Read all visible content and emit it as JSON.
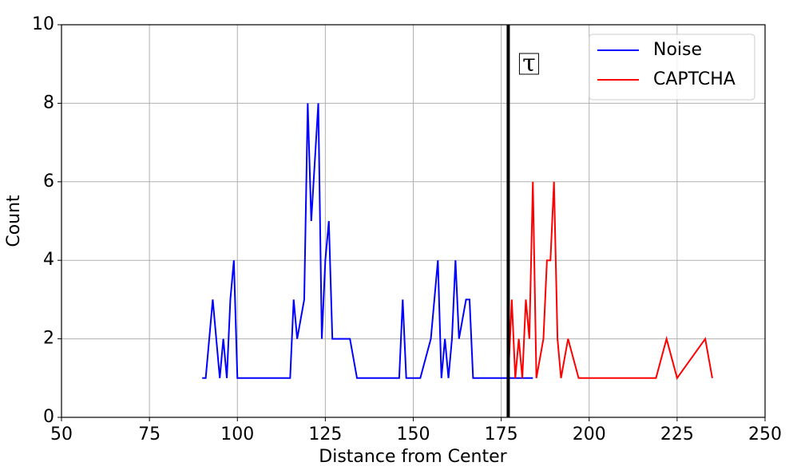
{
  "chart_data": {
    "type": "line",
    "xlabel": "Distance from Center",
    "ylabel": "Count",
    "xlim": [
      50,
      250
    ],
    "xticks": [
      50,
      75,
      100,
      125,
      150,
      175,
      200,
      225,
      250
    ],
    "ylim": [
      0,
      10
    ],
    "yticks": [
      0,
      2,
      4,
      6,
      8,
      10
    ],
    "grid": true,
    "legend": "upper right",
    "vline": {
      "x": 177,
      "label": "τ",
      "color": "#000000"
    },
    "series": [
      {
        "name": "Noise",
        "color": "#0000ff",
        "x": [
          90,
          91,
          93,
          95,
          96,
          97,
          98,
          99,
          100,
          115,
          116,
          117,
          119,
          120,
          121,
          123,
          124,
          125,
          126,
          127,
          132,
          134,
          146,
          147,
          148,
          152,
          155,
          157,
          158,
          159,
          160,
          161,
          162,
          163,
          165,
          166,
          167,
          184
        ],
        "values": [
          1,
          1,
          3,
          1,
          2,
          1,
          3,
          4,
          1,
          1,
          3,
          2,
          3,
          8,
          5,
          8,
          2,
          4,
          5,
          2,
          2,
          1,
          1,
          3,
          1,
          1,
          2,
          4,
          1,
          2,
          1,
          2,
          4,
          2,
          3,
          3,
          1,
          1
        ]
      },
      {
        "name": "CAPTCHA",
        "color": "#ff0000",
        "x": [
          177,
          178,
          179,
          180,
          181,
          182,
          183,
          184,
          185,
          187,
          188,
          189,
          190,
          191,
          192,
          194,
          197,
          219,
          222,
          225,
          233,
          235
        ],
        "values": [
          1,
          3,
          1,
          2,
          1,
          3,
          2,
          6,
          1,
          2,
          4,
          4,
          6,
          2,
          1,
          2,
          1,
          1,
          2,
          1,
          2,
          1
        ]
      }
    ]
  }
}
